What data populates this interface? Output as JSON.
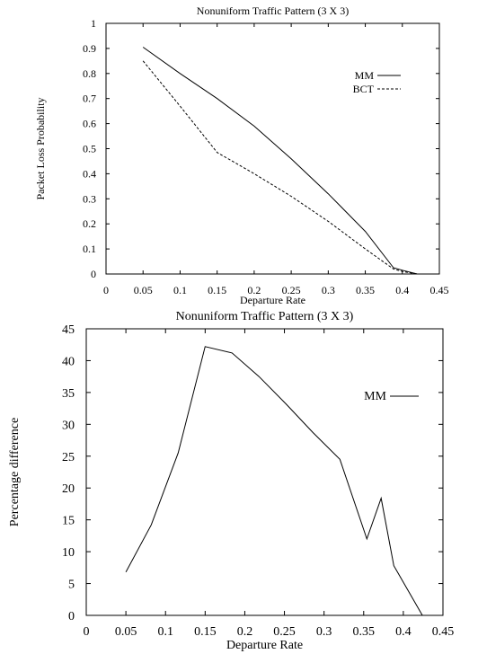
{
  "chart_data": [
    {
      "type": "line",
      "title": "Nonuniform Traffic Pattern (3 X 3)",
      "xlabel": "Departure Rate",
      "ylabel": "Packet Loss Probability",
      "xlim": [
        0,
        0.45
      ],
      "ylim": [
        0,
        1
      ],
      "xticks": [
        "0",
        "0.05",
        "0.1",
        "0.15",
        "0.2",
        "0.25",
        "0.3",
        "0.35",
        "0.4",
        "0.45"
      ],
      "yticks": [
        "0",
        "0.1",
        "0.2",
        "0.3",
        "0.4",
        "0.5",
        "0.6",
        "0.7",
        "0.8",
        "0.9",
        "1"
      ],
      "legend_position": "top-right",
      "series": [
        {
          "name": "MM",
          "style": "solid",
          "x": [
            0.05,
            0.1,
            0.15,
            0.2,
            0.25,
            0.3,
            0.35,
            0.388,
            0.4,
            0.42
          ],
          "y": [
            0.905,
            0.8,
            0.7,
            0.59,
            0.46,
            0.32,
            0.17,
            0.025,
            0.015,
            0.0
          ]
        },
        {
          "name": "BCT",
          "style": "dashed",
          "x": [
            0.05,
            0.1,
            0.15,
            0.2,
            0.25,
            0.3,
            0.35,
            0.388,
            0.4,
            0.42
          ],
          "y": [
            0.85,
            0.67,
            0.485,
            0.4,
            0.31,
            0.21,
            0.1,
            0.02,
            0.01,
            0.0
          ]
        }
      ]
    },
    {
      "type": "line",
      "title": "Nonuniform Traffic Pattern (3 X 3)",
      "xlabel": "Departure Rate",
      "ylabel": "Percentage difference",
      "xlim": [
        0,
        0.45
      ],
      "ylim": [
        0,
        45
      ],
      "xticks": [
        "0",
        "0.05",
        "0.1",
        "0.15",
        "0.2",
        "0.25",
        "0.3",
        "0.35",
        "0.4",
        "0.45"
      ],
      "yticks": [
        "0",
        "5",
        "10",
        "15",
        "20",
        "25",
        "30",
        "35",
        "40",
        "45"
      ],
      "legend_position": "top-right",
      "series": [
        {
          "name": "MM",
          "style": "solid",
          "x": [
            0.05,
            0.082,
            0.116,
            0.15,
            0.184,
            0.218,
            0.252,
            0.286,
            0.32,
            0.354,
            0.372,
            0.388,
            0.424
          ],
          "y": [
            6.8,
            14.2,
            25.5,
            42.2,
            41.2,
            37.5,
            33.2,
            28.7,
            24.5,
            12.0,
            18.4,
            7.8,
            0.0
          ]
        }
      ]
    }
  ]
}
